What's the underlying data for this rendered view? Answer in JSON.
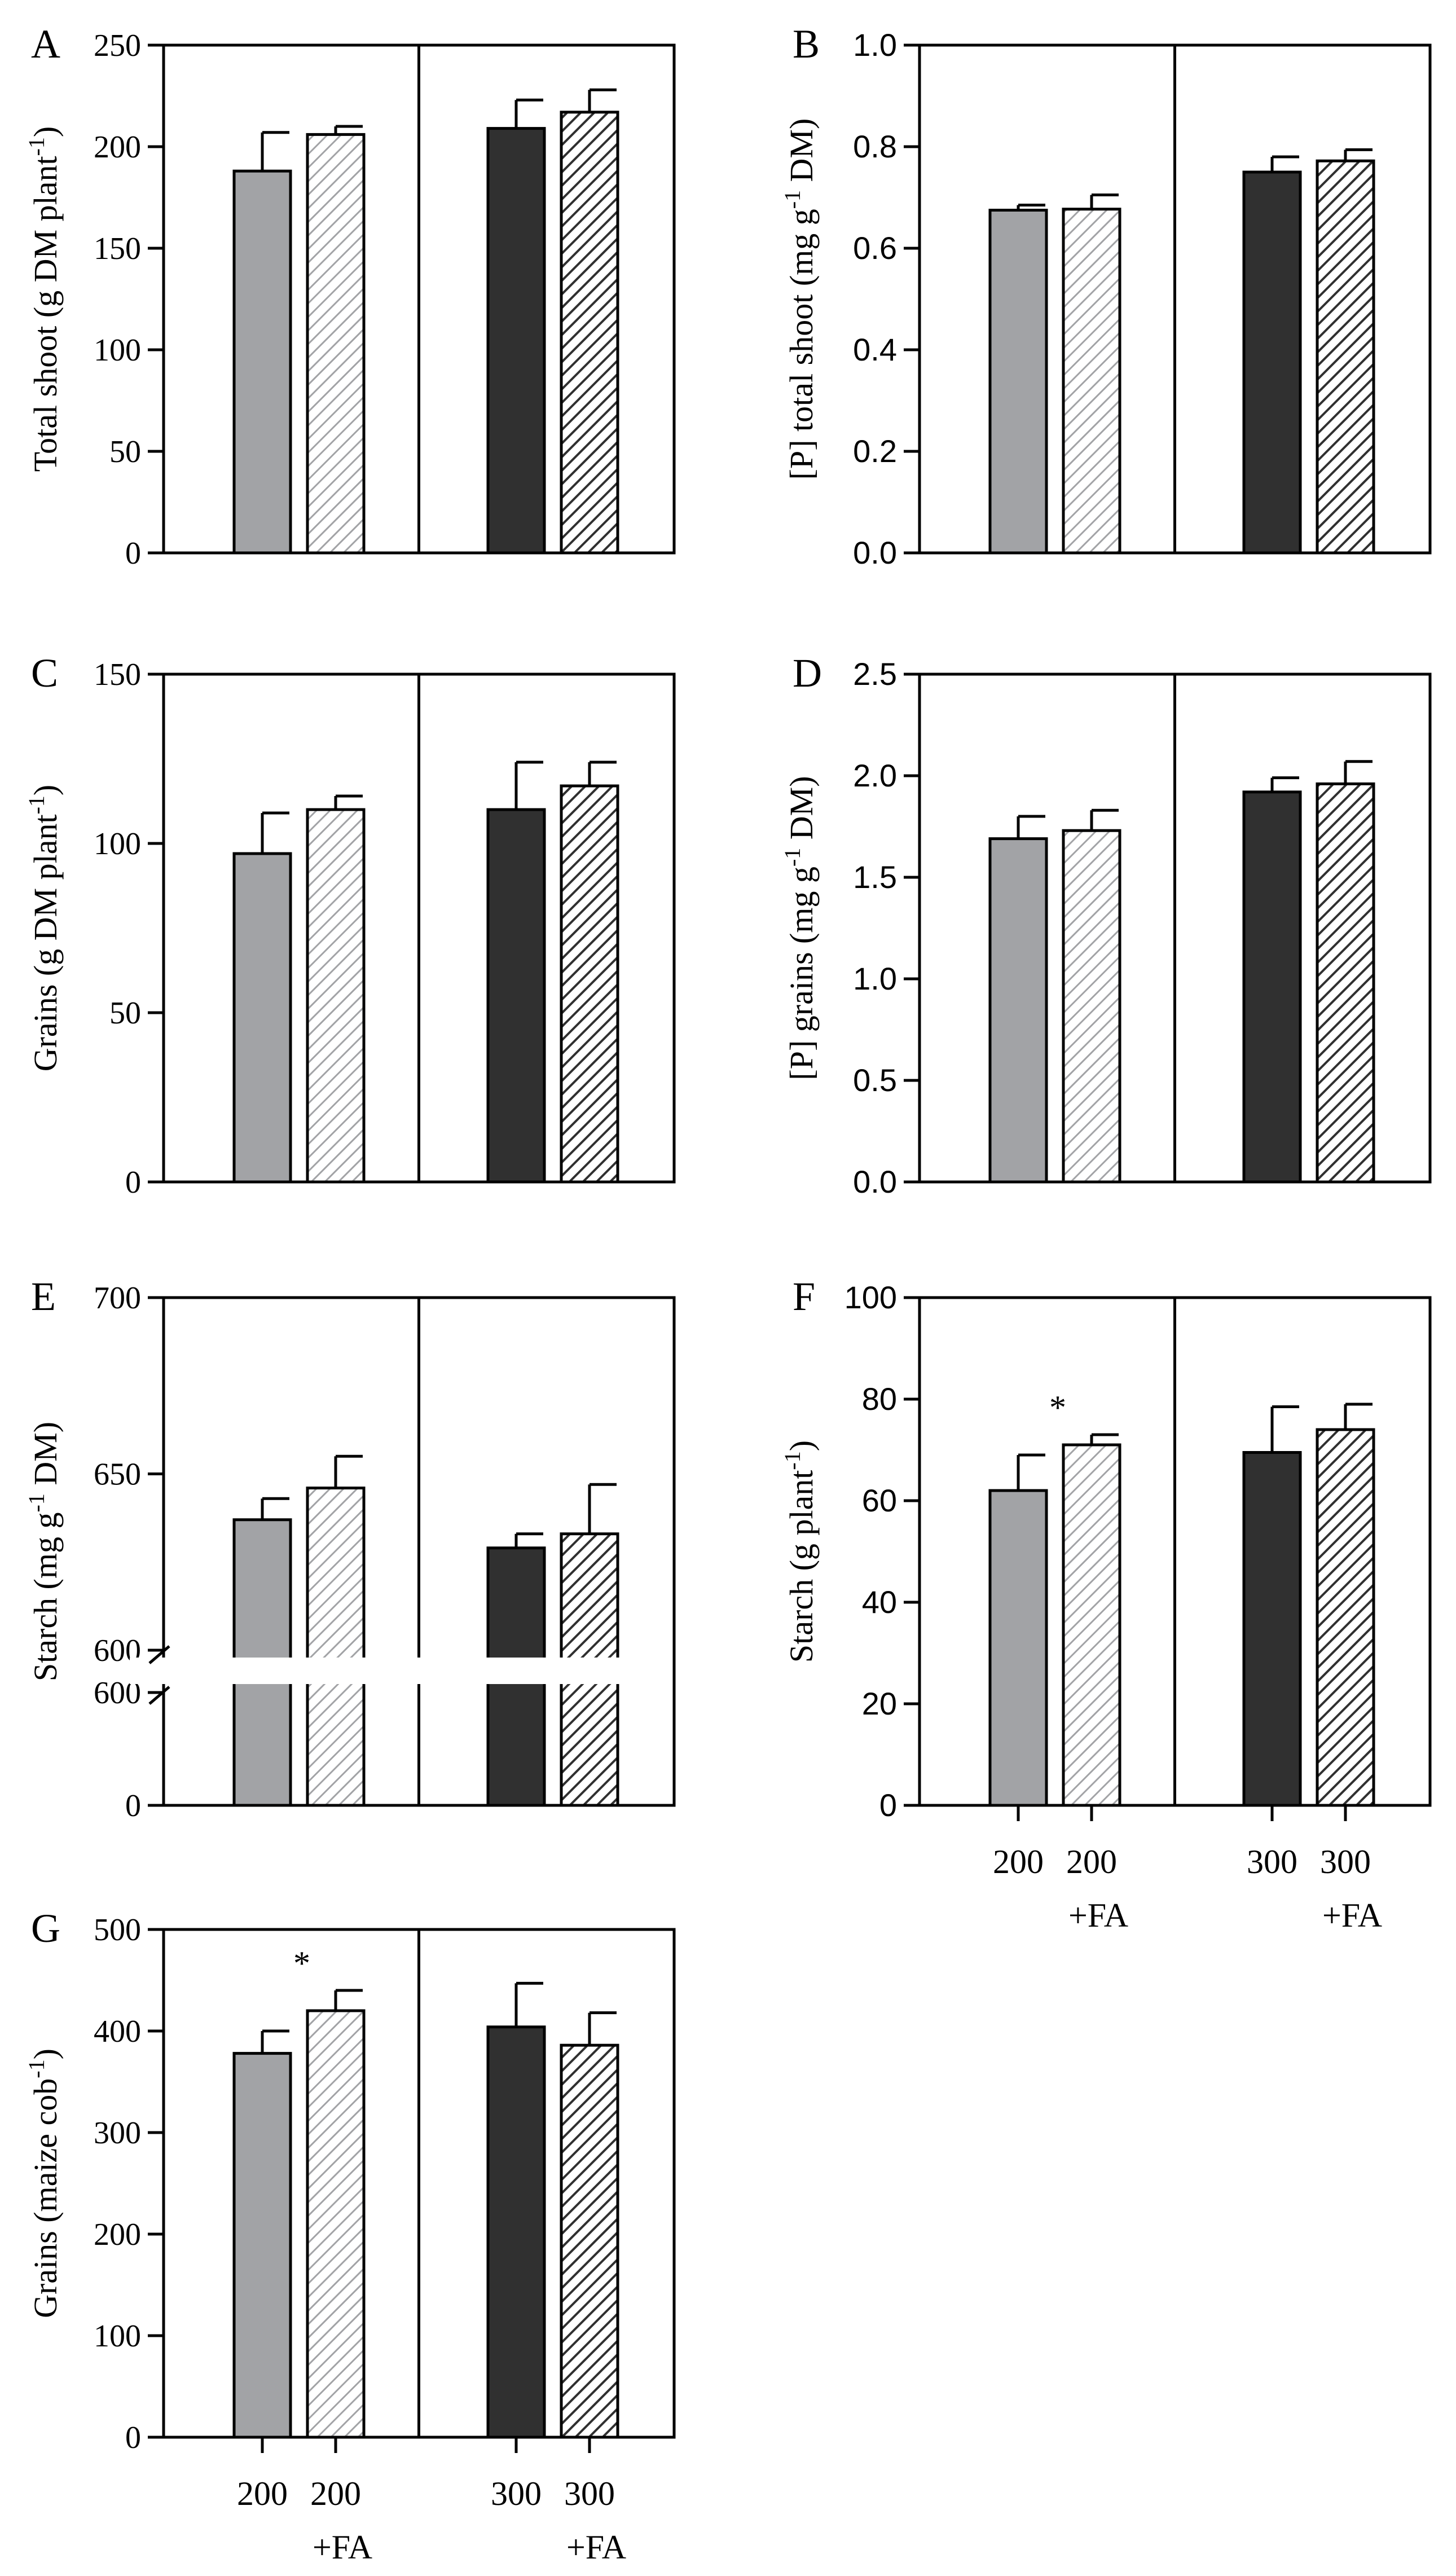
{
  "colors": {
    "bar_200": "#a2a3a6",
    "bar_200_FA_hatch": "#a2a3a6",
    "bar_300": "#303030",
    "bar_300_FA_hatch": "#303030",
    "axis": "#000000"
  },
  "chart_data": [
    {
      "panel": "A",
      "type": "bar",
      "ylabel": "Total shoot (g DM plant-1)",
      "ylim": [
        0,
        250
      ],
      "yticks": [
        "0",
        "50",
        "100",
        "150",
        "200",
        "250"
      ],
      "categories": [
        "200",
        "200 +FA",
        "300",
        "300 +FA"
      ],
      "values": [
        188,
        206,
        209,
        217
      ],
      "errors": [
        19,
        4,
        14,
        11
      ],
      "annotations": []
    },
    {
      "panel": "B",
      "type": "bar",
      "ylabel": "[P] total shoot (mg g-1 DM)",
      "ylim": [
        0,
        1.0
      ],
      "yticks": [
        "0.0",
        "0.2",
        "0.4",
        "0.6",
        "0.8",
        "1.0"
      ],
      "categories": [
        "200",
        "200 +FA",
        "300",
        "300 +FA"
      ],
      "values": [
        0.675,
        0.677,
        0.75,
        0.772
      ],
      "errors": [
        0.01,
        0.028,
        0.03,
        0.022
      ],
      "annotations": []
    },
    {
      "panel": "C",
      "type": "bar",
      "ylabel": "Grains (g DM plant-1)",
      "ylim": [
        0,
        150
      ],
      "yticks": [
        "0",
        "50",
        "100",
        "150"
      ],
      "categories": [
        "200",
        "200 +FA",
        "300",
        "300 +FA"
      ],
      "values": [
        97,
        110,
        110,
        117
      ],
      "errors": [
        12,
        4,
        14,
        7
      ],
      "annotations": []
    },
    {
      "panel": "D",
      "type": "bar",
      "ylabel": "[P] grains (mg g-1 DM)",
      "ylim": [
        0,
        2.5
      ],
      "yticks": [
        "0.0",
        "0.5",
        "1.0",
        "1.5",
        "2.0",
        "2.5"
      ],
      "categories": [
        "200",
        "200 +FA",
        "300",
        "300 +FA"
      ],
      "values": [
        1.69,
        1.73,
        1.92,
        1.96
      ],
      "errors": [
        0.11,
        0.1,
        0.07,
        0.11
      ],
      "annotations": []
    },
    {
      "panel": "E",
      "type": "bar",
      "ylabel": "Starch (mg g-1 DM)",
      "broken_axis": true,
      "ylim": [
        0,
        700
      ],
      "ylim_upper_segment": [
        600,
        700
      ],
      "yticks": [
        "0",
        "600",
        "600",
        "650",
        "700"
      ],
      "categories": [
        "200",
        "200 +FA",
        "300",
        "300 +FA"
      ],
      "values": [
        637,
        646,
        629,
        633
      ],
      "errors": [
        6,
        9,
        4,
        14
      ],
      "annotations": []
    },
    {
      "panel": "F",
      "type": "bar",
      "ylabel": "Starch (g plant-1)",
      "ylim": [
        0,
        100
      ],
      "yticks": [
        "0",
        "20",
        "40",
        "60",
        "80",
        "100"
      ],
      "categories": [
        "200",
        "200 +FA",
        "300",
        "300 +FA"
      ],
      "values": [
        62,
        71,
        69.5,
        74
      ],
      "errors": [
        7,
        2,
        9,
        5
      ],
      "annotations": [
        {
          "bar": 1,
          "text": "*"
        }
      ]
    },
    {
      "panel": "G",
      "type": "bar",
      "ylabel": "Grains (maize cob-1)",
      "ylim": [
        0,
        500
      ],
      "yticks": [
        "0",
        "100",
        "200",
        "300",
        "400",
        "500"
      ],
      "categories": [
        "200",
        "200 +FA",
        "300",
        "300 +FA"
      ],
      "values": [
        378,
        420,
        404,
        386
      ],
      "errors": [
        22,
        20,
        43,
        32
      ],
      "annotations": [
        {
          "bar": 1,
          "text": "*"
        }
      ]
    }
  ],
  "x_tick_labels": [
    {
      "line1": "200",
      "line2": ""
    },
    {
      "line1": "200",
      "line2": "+FA"
    },
    {
      "line1": "300",
      "line2": ""
    },
    {
      "line1": "300",
      "line2": "+FA"
    }
  ]
}
